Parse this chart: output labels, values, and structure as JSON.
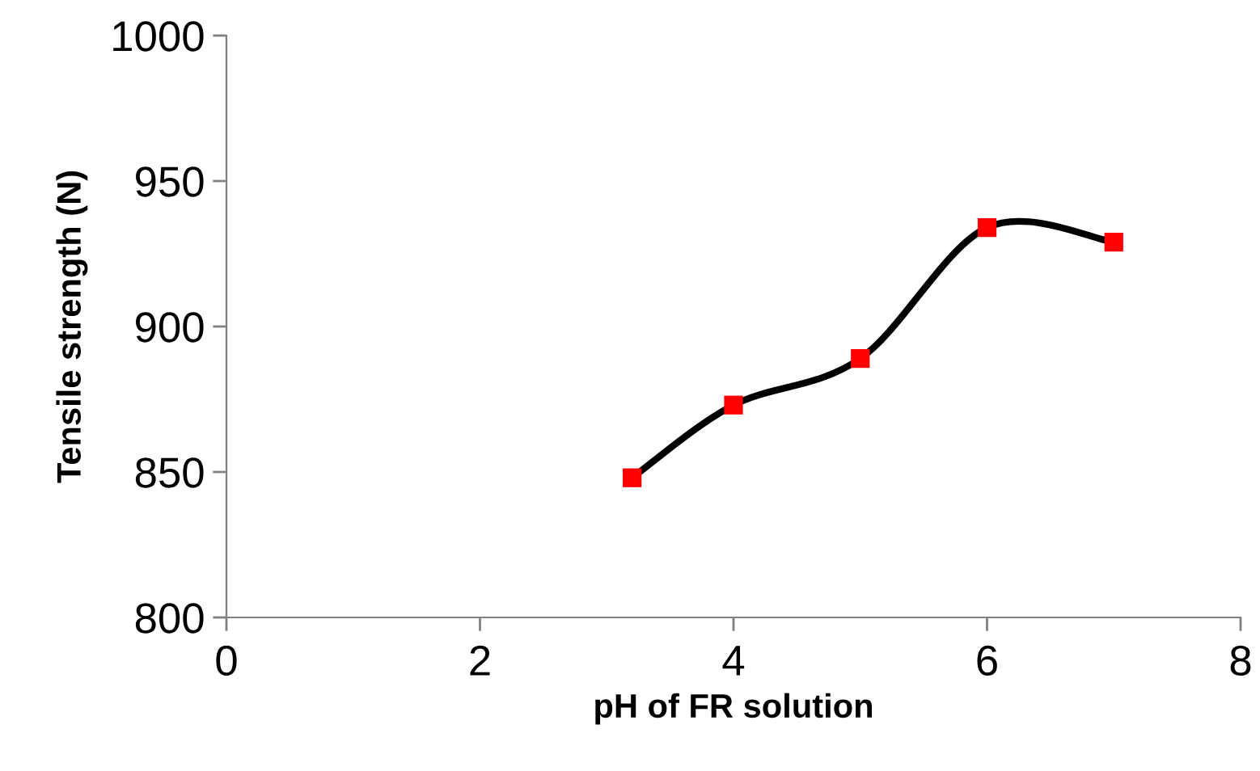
{
  "chart_data": {
    "type": "line",
    "xlabel": "pH of FR solution",
    "ylabel": "Tensile strength (N)",
    "x": [
      3.2,
      4,
      5,
      6,
      7
    ],
    "series": [
      {
        "color": "#000000",
        "colors": [
          "#ff0000",
          "#ff0000",
          "#ff0000",
          "#ff0000",
          "#ff0000"
        ],
        "values": [
          848,
          873,
          889,
          934,
          929
        ]
      }
    ],
    "xlim": [
      0,
      8
    ],
    "xticks": [
      0,
      2,
      4,
      6,
      8
    ],
    "ylim": [
      800,
      1000
    ],
    "yticks": [
      800,
      850,
      900,
      950,
      1000
    ],
    "grid": false,
    "legend": false,
    "marker": "square",
    "line_style": "solid"
  }
}
